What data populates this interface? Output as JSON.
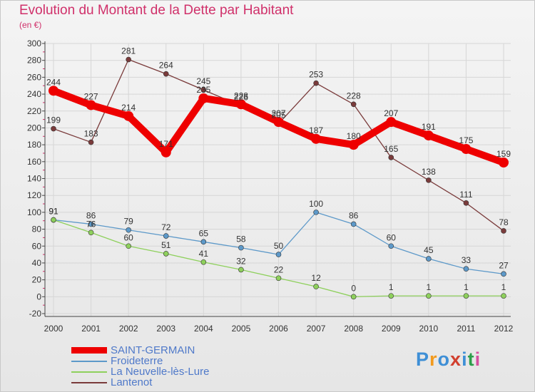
{
  "header": {
    "title": "Evolution du Montant de la Dette par Habitant",
    "subtitle": "(en €)"
  },
  "logo": {
    "text": "Proxiti",
    "letter_colors": [
      "#3e8fd6",
      "#f29a1d",
      "#3e8fd6",
      "#d13f2e",
      "#3e8fd6",
      "#2d9e4b",
      "#d64fa0"
    ]
  },
  "chart_data": {
    "type": "line",
    "title": "Evolution du Montant de la Dette par Habitant",
    "subtitle": "(en €)",
    "xlabel": "",
    "ylabel": "",
    "x": [
      "2000",
      "2001",
      "2002",
      "2003",
      "2004",
      "2005",
      "2006",
      "2007",
      "2008",
      "2009",
      "2010",
      "2011",
      "2012"
    ],
    "ylim": [
      -20,
      300
    ],
    "yticks": [
      -20,
      0,
      20,
      40,
      60,
      80,
      100,
      120,
      140,
      160,
      180,
      200,
      220,
      240,
      260,
      280,
      300
    ],
    "grid": true,
    "legend_position": "bottom-left",
    "series": [
      {
        "name": "SAINT-GERMAIN",
        "color": "#ee0000",
        "values": [
          244,
          227,
          214,
          171,
          235,
          228,
          207,
          187,
          180,
          207,
          191,
          175,
          159
        ]
      },
      {
        "name": "Froideterre",
        "color": "#5d99c9",
        "values": [
          91,
          86,
          79,
          72,
          65,
          58,
          50,
          100,
          86,
          60,
          45,
          33,
          27
        ]
      },
      {
        "name": "La Neuvelle-lès-Lure",
        "color": "#8ed05c",
        "values": [
          91,
          76,
          60,
          51,
          41,
          32,
          22,
          12,
          0,
          1,
          1,
          1,
          1
        ]
      },
      {
        "name": "Lantenot",
        "color": "#7a3b3b",
        "values": [
          199,
          183,
          281,
          264,
          245,
          226,
          205,
          253,
          228,
          165,
          138,
          111,
          78
        ]
      }
    ]
  }
}
